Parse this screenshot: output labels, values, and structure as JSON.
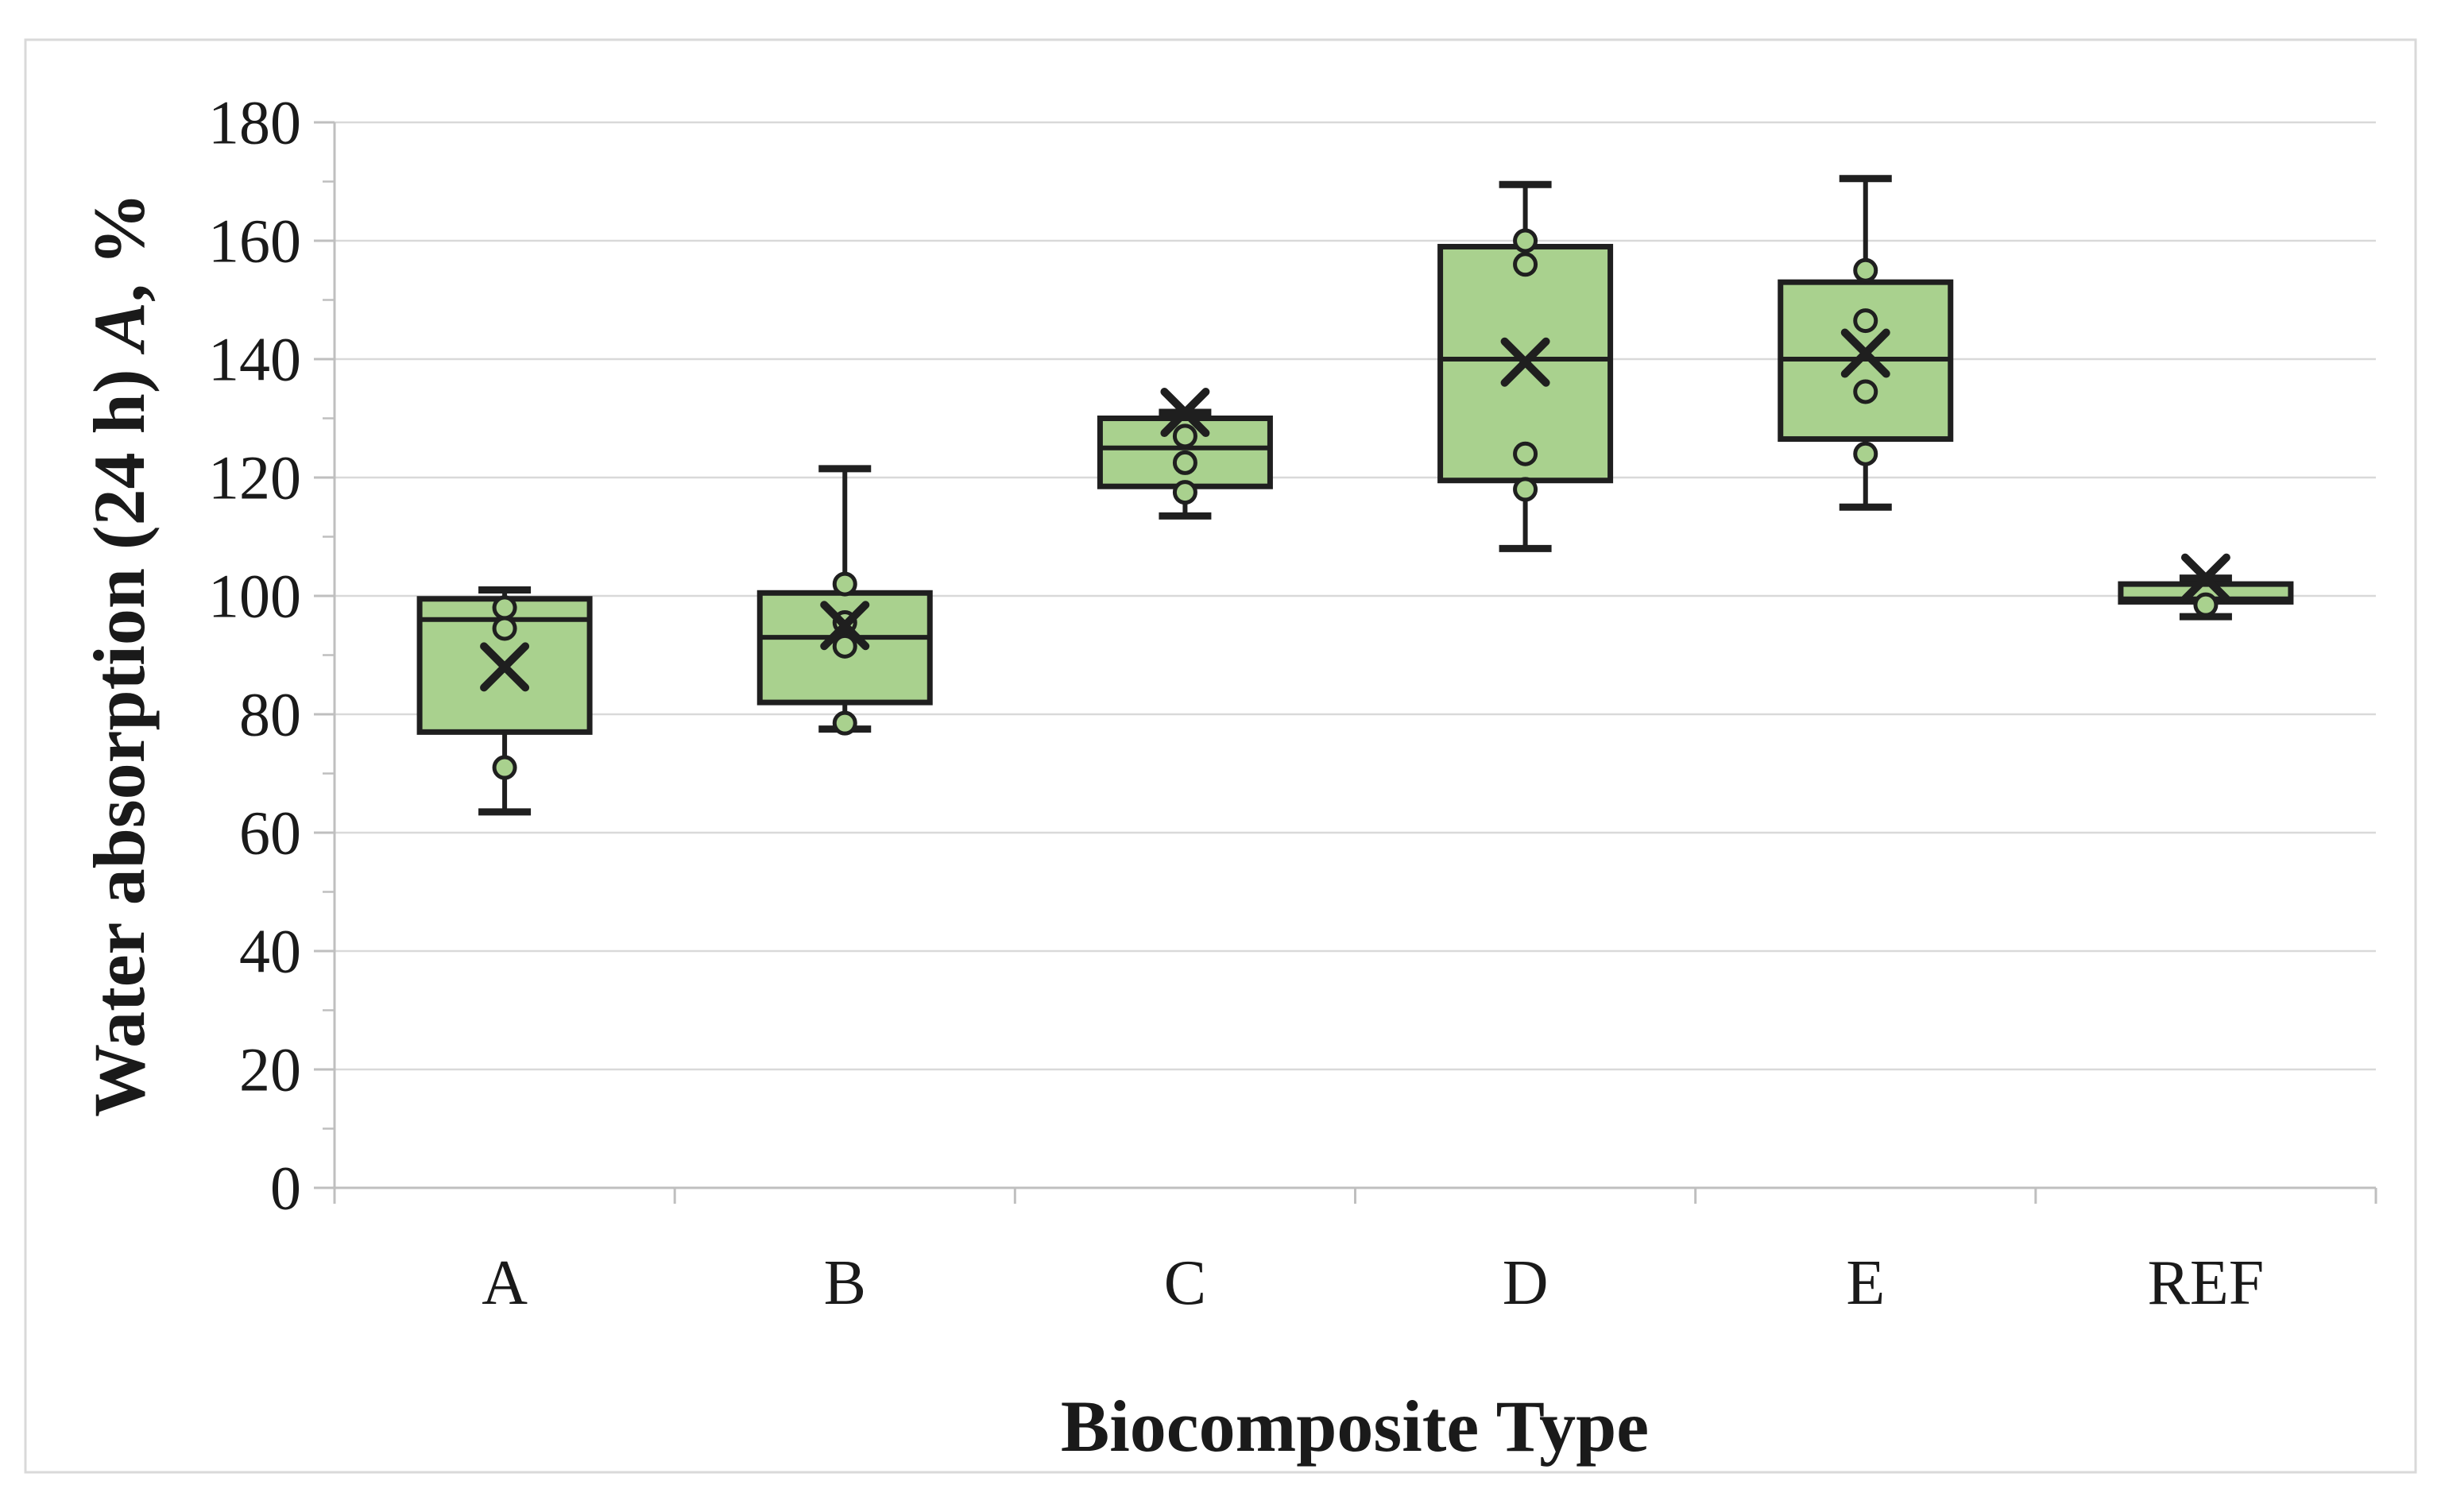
{
  "figure": {
    "background": "#ffffff",
    "border_color": "#d9d9d9"
  },
  "chart_data": {
    "type": "boxplot",
    "title": "",
    "xlabel": "Biocomposite Type",
    "ylabel": "Water absorption (24 h) A, %",
    "ylabel_parts": {
      "prefix": "Water absorption (24 h) ",
      "italic": "A",
      "suffix": ", %"
    },
    "categories": [
      "A",
      "B",
      "C",
      "D",
      "E",
      "REF"
    ],
    "y_ticks": [
      0,
      20,
      40,
      60,
      80,
      100,
      120,
      140,
      160,
      180
    ],
    "ylim": [
      0,
      180
    ],
    "ytick_step": 20,
    "grid": true,
    "legend": false,
    "mean_marker": "x-cross",
    "point_marker": "circle",
    "series": [
      {
        "category": "A",
        "min": 63.5,
        "q1": 77,
        "median": 96,
        "q3": 99.5,
        "max": 101,
        "mean": 88,
        "points": [
          98,
          94.5,
          71
        ]
      },
      {
        "category": "B",
        "min": 77.5,
        "q1": 82,
        "median": 93,
        "q3": 100.5,
        "max": 121.5,
        "mean": 95,
        "points": [
          102,
          95.5,
          91.5,
          78.5
        ]
      },
      {
        "category": "C",
        "min": 113.5,
        "q1": 118.5,
        "median": 125,
        "q3": 130,
        "max": 131,
        "mean": 131,
        "points": [
          127,
          122.5,
          117.5
        ]
      },
      {
        "category": "D",
        "min": 108,
        "q1": 119.5,
        "median": 140,
        "q3": 159,
        "max": 169.5,
        "mean": 139.5,
        "points": [
          160,
          156,
          124,
          118
        ]
      },
      {
        "category": "E",
        "min": 115,
        "q1": 126.5,
        "median": 140,
        "q3": 153,
        "max": 170.5,
        "mean": 141,
        "points": [
          155,
          146.5,
          134.5,
          124
        ]
      },
      {
        "category": "REF",
        "min": 96.5,
        "q1": 99,
        "median": 99.5,
        "q3": 102,
        "max": 103,
        "mean": 103,
        "points": [
          98.5
        ]
      }
    ],
    "colors": {
      "box_fill": "#a9d18e",
      "box_stroke": "#1f1f1f",
      "gridline": "#d9d9d9",
      "axis": "#bfbfbf",
      "text": "#1a1a1a",
      "frame": "#d9d9d9"
    }
  }
}
